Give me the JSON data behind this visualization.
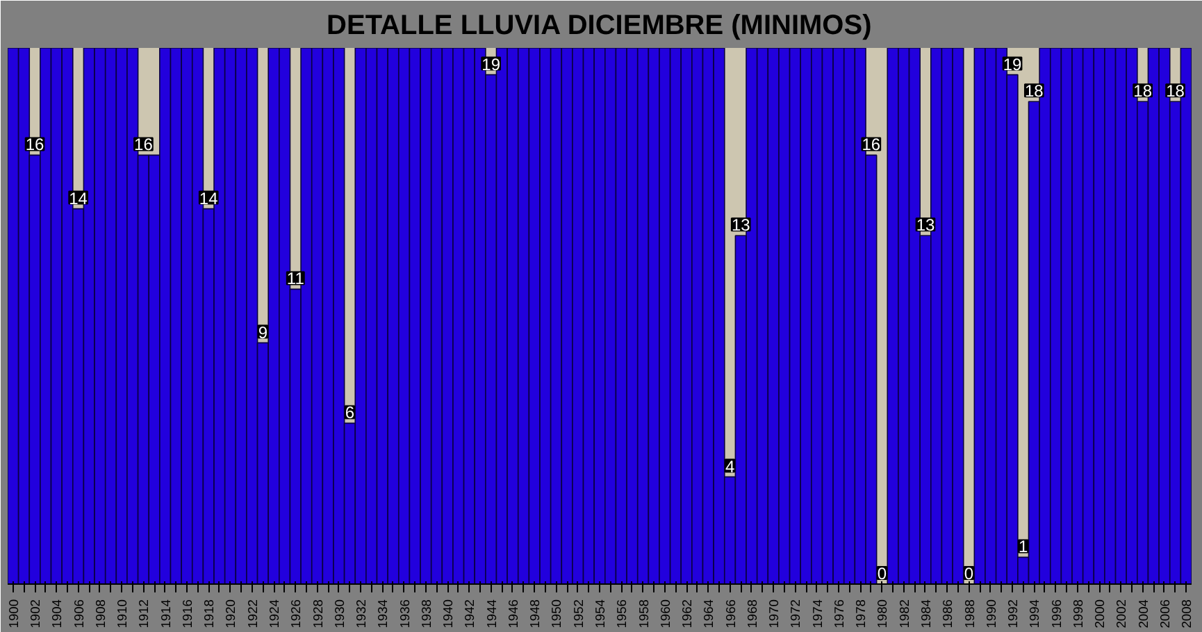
{
  "chart_data": {
    "type": "bar",
    "title": "DETALLE LLUVIA DICIEMBRE (MINIMOS)",
    "categories": [
      "1900",
      null,
      "1902",
      null,
      "1904",
      null,
      "1906",
      null,
      "1908",
      null,
      "1910",
      null,
      "1912",
      null,
      "1914",
      null,
      "1916",
      null,
      "1918",
      null,
      "1920",
      null,
      "1922",
      null,
      "1924",
      null,
      "1926",
      null,
      "1928",
      null,
      "1930",
      null,
      "1932",
      null,
      "1934",
      null,
      "1936",
      null,
      "1938",
      null,
      "1940",
      null,
      "1942",
      null,
      "1944",
      null,
      "1946",
      null,
      "1948",
      null,
      "1950",
      null,
      "1952",
      null,
      "1954",
      null,
      "1956",
      null,
      "1958",
      null,
      "1960",
      null,
      "1962",
      null,
      "1964",
      null,
      "1966",
      null,
      "1968",
      null,
      "1970",
      null,
      "1972",
      null,
      "1974",
      null,
      "1976",
      null,
      "1978",
      null,
      "1980",
      null,
      "1982",
      null,
      "1984",
      null,
      "1986",
      null,
      "1988",
      null,
      "1990",
      null,
      "1992",
      null,
      "1994",
      null,
      "1996",
      null,
      "1998",
      null,
      "2000",
      null,
      "2002",
      null,
      "2004",
      null,
      "2006",
      null,
      "2008"
    ],
    "values": [
      20,
      20,
      16,
      20,
      20,
      20,
      14,
      20,
      20,
      20,
      20,
      20,
      16,
      16,
      20,
      20,
      20,
      20,
      14,
      20,
      20,
      20,
      20,
      9,
      20,
      20,
      11,
      20,
      20,
      20,
      20,
      6,
      20,
      20,
      20,
      20,
      20,
      20,
      20,
      20,
      20,
      20,
      20,
      20,
      19,
      20,
      20,
      20,
      20,
      20,
      20,
      20,
      20,
      20,
      20,
      20,
      20,
      20,
      20,
      20,
      20,
      20,
      20,
      20,
      20,
      20,
      4,
      13,
      20,
      20,
      20,
      20,
      20,
      20,
      20,
      20,
      20,
      20,
      20,
      16,
      0,
      20,
      20,
      20,
      13,
      20,
      20,
      20,
      0,
      20,
      20,
      20,
      19,
      1,
      18,
      20,
      20,
      20,
      20,
      20,
      20,
      20,
      20,
      20,
      18,
      20,
      20,
      18,
      20
    ],
    "value_labels": [
      null,
      null,
      "16",
      null,
      null,
      null,
      "14",
      null,
      null,
      null,
      null,
      null,
      "16",
      null,
      null,
      null,
      null,
      null,
      "14",
      null,
      null,
      null,
      null,
      "9",
      null,
      null,
      "11",
      null,
      null,
      null,
      null,
      "6",
      null,
      null,
      null,
      null,
      null,
      null,
      null,
      null,
      null,
      null,
      null,
      null,
      "19",
      null,
      null,
      null,
      null,
      null,
      null,
      null,
      null,
      null,
      null,
      null,
      null,
      null,
      null,
      null,
      null,
      null,
      null,
      null,
      null,
      null,
      "4",
      "13",
      null,
      null,
      null,
      null,
      null,
      null,
      null,
      null,
      null,
      null,
      null,
      "16",
      "0",
      null,
      null,
      null,
      "13",
      null,
      null,
      null,
      "0",
      null,
      null,
      null,
      "19",
      "1",
      "18",
      null,
      null,
      null,
      null,
      null,
      null,
      null,
      null,
      null,
      "18",
      null,
      null,
      "18",
      null
    ],
    "color": "#2200dd",
    "ylim": [
      0,
      20
    ],
    "grid": false
  }
}
